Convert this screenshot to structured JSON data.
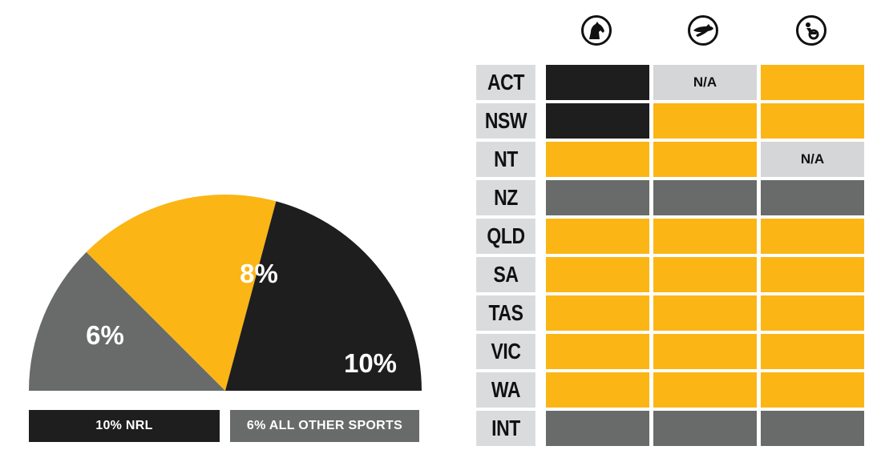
{
  "colors": {
    "yellow": "#fbb515",
    "black": "#1e1e1e",
    "dark_gray": "#686b69",
    "light_gray": "#d4d6d8",
    "label_bg": "#d9dbdc"
  },
  "chart_data": [
    {
      "type": "pie",
      "variant": "semicircle",
      "slices": [
        {
          "label": "6%",
          "value": 6,
          "color": "#686b69"
        },
        {
          "label": "8%",
          "value": 8,
          "color": "#fbb515"
        },
        {
          "label": "10%",
          "value": 10,
          "color": "#1e1e1e"
        }
      ],
      "legend": [
        {
          "text": "10% NRL",
          "color": "#1e1e1e"
        },
        {
          "text": "6% ALL OTHER SPORTS",
          "color": "#686b69"
        }
      ]
    },
    {
      "type": "table",
      "columns": [
        {
          "icon": "horse-racing-icon"
        },
        {
          "icon": "greyhound-racing-icon"
        },
        {
          "icon": "harness-racing-icon"
        }
      ],
      "rows": [
        {
          "state": "ACT",
          "cells": [
            {
              "color": "black",
              "text": ""
            },
            {
              "color": "light_gray",
              "text": "N/A"
            },
            {
              "color": "yellow",
              "text": ""
            }
          ]
        },
        {
          "state": "NSW",
          "cells": [
            {
              "color": "black",
              "text": ""
            },
            {
              "color": "yellow",
              "text": ""
            },
            {
              "color": "yellow",
              "text": ""
            }
          ]
        },
        {
          "state": "NT",
          "cells": [
            {
              "color": "yellow",
              "text": ""
            },
            {
              "color": "yellow",
              "text": ""
            },
            {
              "color": "light_gray",
              "text": "N/A"
            }
          ]
        },
        {
          "state": "NZ",
          "cells": [
            {
              "color": "dark_gray",
              "text": ""
            },
            {
              "color": "dark_gray",
              "text": ""
            },
            {
              "color": "dark_gray",
              "text": ""
            }
          ]
        },
        {
          "state": "QLD",
          "cells": [
            {
              "color": "yellow",
              "text": ""
            },
            {
              "color": "yellow",
              "text": ""
            },
            {
              "color": "yellow",
              "text": ""
            }
          ]
        },
        {
          "state": "SA",
          "cells": [
            {
              "color": "yellow",
              "text": ""
            },
            {
              "color": "yellow",
              "text": ""
            },
            {
              "color": "yellow",
              "text": ""
            }
          ]
        },
        {
          "state": "TAS",
          "cells": [
            {
              "color": "yellow",
              "text": ""
            },
            {
              "color": "yellow",
              "text": ""
            },
            {
              "color": "yellow",
              "text": ""
            }
          ]
        },
        {
          "state": "VIC",
          "cells": [
            {
              "color": "yellow",
              "text": ""
            },
            {
              "color": "yellow",
              "text": ""
            },
            {
              "color": "yellow",
              "text": ""
            }
          ]
        },
        {
          "state": "WA",
          "cells": [
            {
              "color": "yellow",
              "text": ""
            },
            {
              "color": "yellow",
              "text": ""
            },
            {
              "color": "yellow",
              "text": ""
            }
          ]
        },
        {
          "state": "INT",
          "cells": [
            {
              "color": "dark_gray",
              "text": ""
            },
            {
              "color": "dark_gray",
              "text": ""
            },
            {
              "color": "dark_gray",
              "text": ""
            }
          ]
        }
      ]
    }
  ]
}
